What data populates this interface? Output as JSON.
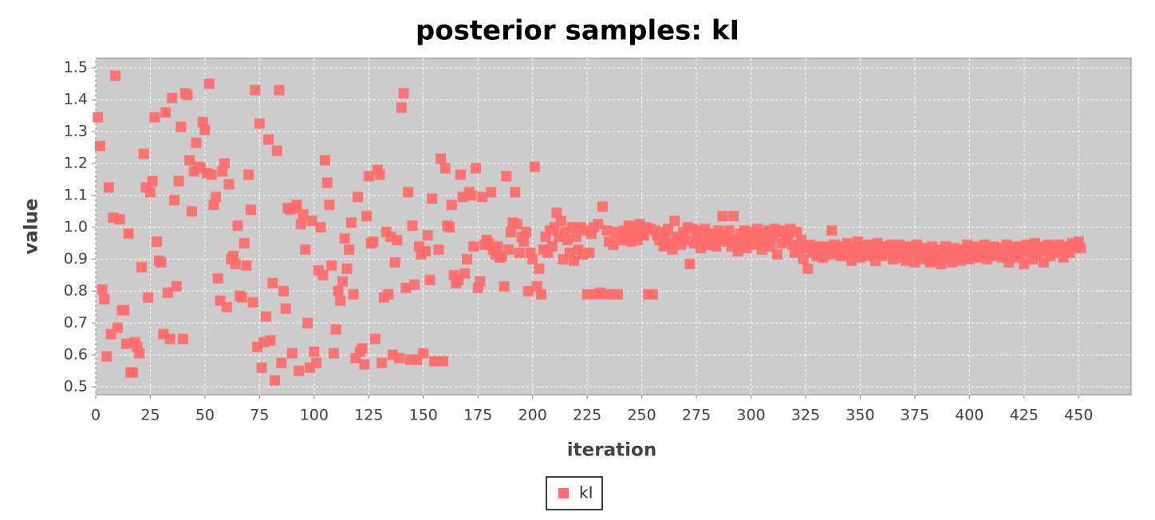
{
  "chart_data": {
    "type": "scatter",
    "title": "posterior samples: kI",
    "x_label": "iteration",
    "y_label": "value",
    "xlim": [
      0,
      474
    ],
    "ylim": [
      0.475,
      1.53
    ],
    "xticks": [
      0,
      25,
      50,
      75,
      100,
      125,
      150,
      175,
      200,
      225,
      250,
      275,
      300,
      325,
      350,
      375,
      400,
      425,
      450
    ],
    "yticks": [
      0.5,
      0.6,
      0.7,
      0.8,
      0.9,
      {
        "value": 1,
        "label": "1.0"
      },
      1.1,
      1.2,
      1.3,
      1.4,
      1.5
    ],
    "grid": true,
    "legend": "bottom",
    "x": [
      1,
      2,
      3,
      4,
      5,
      6,
      7,
      8,
      9,
      10,
      11,
      12,
      13,
      14,
      15,
      16,
      17,
      18,
      19,
      20,
      21,
      22,
      23,
      24,
      25,
      26,
      27,
      28,
      29,
      30,
      31,
      32,
      33,
      34,
      35,
      36,
      37,
      38,
      39,
      40,
      41,
      42,
      43,
      44,
      45,
      46,
      47,
      48,
      49,
      50,
      51,
      52,
      53,
      54,
      55,
      56,
      57,
      58,
      59,
      60,
      61,
      62,
      63,
      64,
      65,
      66,
      67,
      68,
      69,
      70,
      71,
      72,
      73,
      74,
      75,
      76,
      77,
      78,
      79,
      80,
      81,
      82,
      83,
      84,
      85,
      86,
      87,
      88,
      89,
      90,
      91,
      92,
      93,
      94,
      95,
      96,
      97,
      98,
      99,
      100,
      101,
      102,
      103,
      104,
      105,
      106,
      107,
      108,
      109,
      110,
      111,
      112,
      113,
      114,
      115,
      116,
      117,
      118,
      119,
      120,
      121,
      122,
      123,
      124,
      125,
      126,
      127,
      128,
      129,
      130,
      131,
      132,
      133,
      134,
      135,
      136,
      137,
      138,
      139,
      140,
      141,
      142,
      143,
      144,
      145,
      146,
      147,
      148,
      149,
      150,
      151,
      152,
      153,
      154,
      155,
      156,
      157,
      158,
      159,
      160,
      161,
      162,
      163,
      164,
      165,
      166,
      167,
      168,
      169,
      170,
      171,
      172,
      173,
      174,
      175,
      176,
      177,
      178,
      179,
      180,
      181,
      182,
      183,
      184,
      185,
      186,
      187,
      188,
      189,
      190,
      191,
      192,
      193,
      194,
      195,
      196,
      197,
      198,
      199,
      200,
      201,
      202,
      203,
      204,
      205,
      206,
      207,
      208,
      209,
      210,
      211,
      212,
      213,
      214,
      215,
      216,
      217,
      218,
      219,
      220,
      221,
      222,
      223,
      224,
      225,
      226,
      227,
      228,
      229,
      230,
      231,
      232,
      233,
      234,
      235,
      236,
      237,
      238,
      239,
      240,
      241,
      242,
      243,
      244,
      245,
      246,
      247,
      248,
      249,
      250,
      251,
      252,
      253,
      254,
      255,
      256,
      257,
      258,
      259,
      260,
      261,
      262,
      263,
      264,
      265,
      266,
      267,
      268,
      269,
      270,
      271,
      272,
      273,
      274,
      275,
      276,
      277,
      278,
      279,
      280,
      281,
      282,
      283,
      284,
      285,
      286,
      287,
      288,
      289,
      290,
      291,
      292,
      293,
      294,
      295,
      296,
      297,
      298,
      299,
      300,
      301,
      302,
      303,
      304,
      305,
      306,
      307,
      308,
      309,
      310,
      311,
      312,
      313,
      314,
      315,
      316,
      317,
      318,
      319,
      320,
      321,
      322,
      323,
      324,
      325,
      326,
      327,
      328,
      329,
      330,
      331,
      332,
      333,
      334,
      335,
      336,
      337,
      338,
      339,
      340,
      341,
      342,
      343,
      344,
      345,
      346,
      347,
      348,
      349,
      350,
      351,
      352,
      353,
      354,
      355,
      356,
      357,
      358,
      359,
      360,
      361,
      362,
      363,
      364,
      365,
      366,
      367,
      368,
      369,
      370,
      371,
      372,
      373,
      374,
      375,
      376,
      377,
      378,
      379,
      380,
      381,
      382,
      383,
      384,
      385,
      386,
      387,
      388,
      389,
      390,
      391,
      392,
      393,
      394,
      395,
      396,
      397,
      398,
      399,
      400,
      401,
      402,
      403,
      404,
      405,
      406,
      407,
      408,
      409,
      410,
      411,
      412,
      413,
      414,
      415,
      416,
      417,
      418,
      419,
      420,
      421,
      422,
      423,
      424,
      425,
      426,
      427,
      428,
      429,
      430,
      431,
      432,
      433,
      434,
      435,
      436,
      437,
      438,
      439,
      440,
      441,
      442,
      443,
      444,
      445,
      446,
      447,
      448,
      449,
      450,
      451
    ],
    "series": [
      {
        "name": "kI",
        "color": "#ff6a6a",
        "values": [
          1.345,
          1.255,
          0.805,
          0.775,
          0.595,
          1.125,
          0.665,
          1.03,
          1.475,
          0.685,
          1.025,
          0.74,
          0.74,
          0.635,
          0.98,
          0.545,
          0.545,
          0.64,
          0.625,
          0.605,
          0.875,
          1.23,
          1.125,
          0.78,
          1.11,
          1.145,
          1.345,
          0.955,
          0.895,
          0.89,
          0.665,
          1.36,
          0.795,
          0.65,
          1.405,
          1.085,
          0.815,
          1.145,
          1.315,
          0.65,
          1.42,
          1.415,
          1.21,
          1.05,
          1.175,
          1.265,
          1.19,
          1.185,
          1.33,
          1.305,
          1.17,
          1.45,
          1.165,
          1.07,
          1.095,
          0.84,
          0.77,
          1.175,
          1.2,
          0.75,
          1.135,
          0.9,
          0.91,
          0.885,
          1.005,
          0.785,
          0.78,
          0.95,
          0.88,
          1.165,
          1.055,
          0.765,
          1.43,
          0.625,
          1.325,
          0.56,
          0.64,
          0.72,
          1.275,
          0.645,
          0.825,
          0.52,
          1.24,
          1.43,
          0.575,
          0.8,
          0.745,
          1.06,
          1.055,
          0.605,
          1.06,
          1.07,
          0.55,
          1.01,
          1.04,
          0.93,
          0.7,
          0.56,
          1.02,
          0.61,
          0.575,
          0.865,
          1.0,
          0.85,
          1.21,
          1.14,
          1.07,
          0.88,
          0.605,
          0.68,
          0.8,
          0.77,
          0.83,
          0.965,
          0.87,
          0.93,
          1.015,
          0.79,
          0.59,
          1.095,
          0.61,
          0.62,
          0.57,
          1.035,
          1.16,
          0.95,
          0.955,
          0.65,
          1.18,
          1.165,
          0.575,
          0.78,
          0.985,
          0.79,
          0.97,
          0.6,
          0.89,
          0.96,
          0.59,
          1.375,
          1.42,
          0.81,
          1.11,
          0.585,
          1.005,
          0.82,
          0.585,
          0.94,
          0.915,
          0.605,
          0.925,
          0.975,
          0.835,
          1.09,
          0.58,
          0.58,
          0.93,
          1.215,
          0.58,
          1.185,
          1.005,
          1.0,
          1.07,
          0.85,
          0.825,
          0.835,
          1.165,
          1.095,
          0.855,
          0.9,
          1.11,
          1.1,
          0.94,
          1.185,
          0.81,
          0.83,
          1.095,
          0.945,
          0.96,
          0.95,
          1.11,
          0.93,
          0.915,
          0.94,
          0.905,
          0.91,
          0.815,
          1.16,
          0.93,
          0.985,
          1.015,
          1.11,
          1.01,
          0.92,
          0.97,
          0.955,
          0.985,
          0.8,
          0.92,
          0.9,
          1.19,
          0.815,
          0.87,
          0.79,
          0.93,
          0.97,
          0.92,
          0.99,
          0.94,
          1.0,
          1.045,
          0.97,
          1.02,
          0.9,
          0.985,
          0.96,
          0.92,
          1.0,
          0.895,
          0.97,
          0.93,
          1.0,
          0.915,
          0.99,
          0.79,
          0.92,
          0.98,
          1.0,
          0.79,
          1.01,
          0.795,
          1.065,
          0.79,
          0.99,
          0.955,
          0.79,
          0.945,
          0.985,
          0.79,
          0.97,
          0.96,
          0.99,
          0.975,
          1.005,
          0.955,
          1.0,
          0.985,
          0.96,
          1.01,
          0.98,
          0.975,
          1.0,
          0.79,
          0.995,
          0.79,
          0.99,
          0.975,
          0.96,
          0.985,
          0.94,
          0.97,
          0.995,
          0.95,
          0.93,
          1.02,
          0.97,
          0.965,
          0.945,
          0.985,
          0.96,
          1.0,
          0.885,
          0.995,
          0.95,
          0.975,
          0.99,
          0.935,
          0.96,
          0.995,
          0.945,
          0.98,
          0.955,
          0.97,
          0.94,
          0.99,
          0.96,
          1.035,
          0.975,
          0.955,
          0.99,
          0.94,
          1.035,
          0.96,
          0.925,
          0.98,
          0.95,
          0.99,
          0.935,
          0.965,
          0.985,
          0.945,
          0.975,
          0.995,
          0.955,
          0.93,
          0.98,
          0.96,
          0.99,
          0.94,
          0.97,
          0.995,
          0.915,
          0.985,
          0.95,
          0.99,
          0.96,
          0.975,
          0.995,
          0.945,
          0.92,
          0.985,
          0.93,
          0.96,
          0.9,
          0.935,
          0.87,
          0.945,
          0.92,
          0.935,
          0.91,
          0.94,
          0.925,
          0.905,
          0.94,
          0.93,
          0.915,
          0.99,
          0.945,
          0.92,
          0.935,
          0.91,
          0.94,
          0.925,
          0.95,
          0.915,
          0.895,
          0.935,
          0.92,
          0.955,
          0.905,
          0.94,
          0.93,
          0.91,
          0.945,
          0.92,
          0.935,
          0.895,
          0.95,
          0.925,
          0.91,
          0.94,
          0.93,
          0.915,
          0.945,
          0.9,
          0.935,
          0.92,
          0.945,
          0.905,
          0.93,
          0.895,
          0.94,
          0.915,
          0.93,
          0.89,
          0.945,
          0.92,
          0.905,
          0.935,
          0.9,
          0.925,
          0.89,
          0.94,
          0.91,
          0.895,
          0.93,
          0.885,
          0.915,
          0.94,
          0.9,
          0.925,
          0.89,
          0.935,
          0.905,
          0.92,
          0.895,
          0.93,
          0.91,
          0.945,
          0.9,
          0.925,
          0.915,
          0.94,
          0.905,
          0.935,
          0.92,
          0.945,
          0.9,
          0.93,
          0.915,
          0.94,
          0.91,
          0.925,
          0.935,
          0.905,
          0.93,
          0.945,
          0.89,
          0.92,
          0.935,
          0.905,
          0.94,
          0.915,
          0.93,
          0.885,
          0.945,
          0.92,
          0.935,
          0.9,
          0.95,
          0.915,
          0.93,
          0.94,
          0.89,
          0.925,
          0.945,
          0.91,
          0.935,
          0.94,
          0.92,
          0.945,
          0.93,
          0.905,
          0.94,
          0.935,
          0.92,
          0.95,
          0.945,
          0.94,
          0.955,
          0.935
        ]
      }
    ]
  }
}
